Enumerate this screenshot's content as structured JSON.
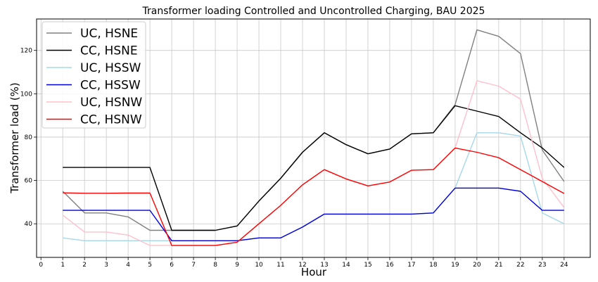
{
  "chart_data": {
    "type": "line",
    "title": "Transformer loading Controlled and Uncontrolled Charging, BAU 2025",
    "xlabel": "Hour",
    "ylabel": "Transformer load (%)",
    "xlim": [
      -0.2,
      25.2
    ],
    "ylim": [
      24.5,
      134.5
    ],
    "x_ticks": [
      0,
      1,
      2,
      3,
      4,
      5,
      6,
      7,
      8,
      9,
      10,
      11,
      12,
      13,
      14,
      15,
      16,
      17,
      18,
      19,
      20,
      21,
      22,
      23,
      24
    ],
    "y_ticks": [
      40,
      60,
      80,
      100,
      120
    ],
    "grid": true,
    "legend_position": "top-left",
    "x": [
      1,
      2,
      3,
      4,
      5,
      6,
      7,
      8,
      9,
      10,
      11,
      12,
      13,
      14,
      15,
      16,
      17,
      18,
      19,
      20,
      21,
      22,
      23,
      24
    ],
    "series": [
      {
        "name": "UC, HSNE",
        "color": "#808080",
        "values": [
          55,
          45,
          45,
          43.2,
          37,
          37,
          37,
          37,
          39,
          50.5,
          61,
          73,
          82,
          76.5,
          72.3,
          74.5,
          81.5,
          82,
          95,
          129.5,
          126.5,
          118.5,
          74,
          59.5
        ]
      },
      {
        "name": "CC, HSNE",
        "color": "#000000",
        "values": [
          66,
          66,
          66,
          66,
          66,
          37,
          37,
          37,
          39,
          50.5,
          61,
          73,
          82,
          76.5,
          72.3,
          74.5,
          81.5,
          82,
          94.5,
          92,
          89.5,
          82,
          75,
          66
        ]
      },
      {
        "name": "UC, HSSW",
        "color": "#a6d8ea",
        "values": [
          33.5,
          32.2,
          32.2,
          32.2,
          32.2,
          32.2,
          32.2,
          32.2,
          32.2,
          33.5,
          33.5,
          38.5,
          44.5,
          44.5,
          44.5,
          44.5,
          44.5,
          45,
          56.5,
          82,
          82,
          80.5,
          45,
          40
        ]
      },
      {
        "name": "CC, HSSW",
        "color": "#0000dd",
        "values": [
          46.2,
          46.2,
          46.2,
          46.2,
          46.2,
          32.2,
          32.2,
          32.2,
          32.2,
          33.5,
          33.5,
          38.5,
          44.5,
          44.5,
          44.5,
          44.5,
          44.5,
          45,
          56.5,
          56.5,
          56.5,
          55,
          46.2,
          46.2
        ]
      },
      {
        "name": "UC, HSNW",
        "color": "#ffc0cb",
        "values": [
          44,
          36.2,
          36.2,
          34.8,
          30,
          30,
          30,
          30,
          31.5,
          40,
          48.5,
          58,
          65,
          60.7,
          57.5,
          59.3,
          64.7,
          65,
          75,
          106,
          103.5,
          97.5,
          61,
          47.5
        ]
      },
      {
        "name": "CC, HSNW",
        "color": "#ff0000",
        "values": [
          54.3,
          54.1,
          54.1,
          54.2,
          54.2,
          30,
          30,
          30,
          31.5,
          40,
          48.5,
          58,
          65,
          60.7,
          57.5,
          59.3,
          64.7,
          65,
          75,
          73,
          70.5,
          65,
          59.5,
          54
        ]
      }
    ]
  }
}
